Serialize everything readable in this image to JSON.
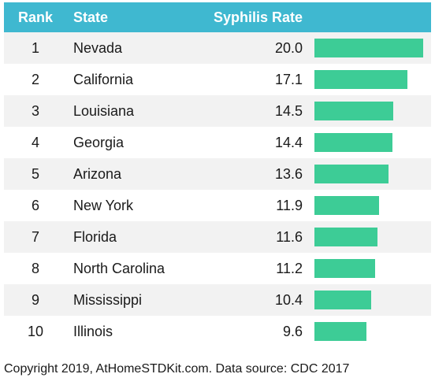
{
  "header": {
    "rank": "Rank",
    "state": "State",
    "rate": "Syphilis Rate"
  },
  "chart_data": {
    "type": "bar",
    "categories": [
      "Nevada",
      "California",
      "Louisiana",
      "Georgia",
      "Arizona",
      "New York",
      "Florida",
      "North Carolina",
      "Mississippi",
      "Illinois"
    ],
    "ranks": [
      "1",
      "2",
      "3",
      "4",
      "5",
      "6",
      "7",
      "8",
      "9",
      "10"
    ],
    "values": [
      20.0,
      17.1,
      14.5,
      14.4,
      13.6,
      11.9,
      11.6,
      11.2,
      10.4,
      9.6
    ],
    "value_labels": [
      "20.0",
      "17.1",
      "14.5",
      "14.4",
      "13.6",
      "11.9",
      "11.6",
      "11.2",
      "10.4",
      "9.6"
    ],
    "bar_color": "#3dcc96",
    "header_color": "#3fb8d0"
  },
  "footer": "Copyright 2019, AtHomeSTDKit.com. Data source: CDC 2017"
}
